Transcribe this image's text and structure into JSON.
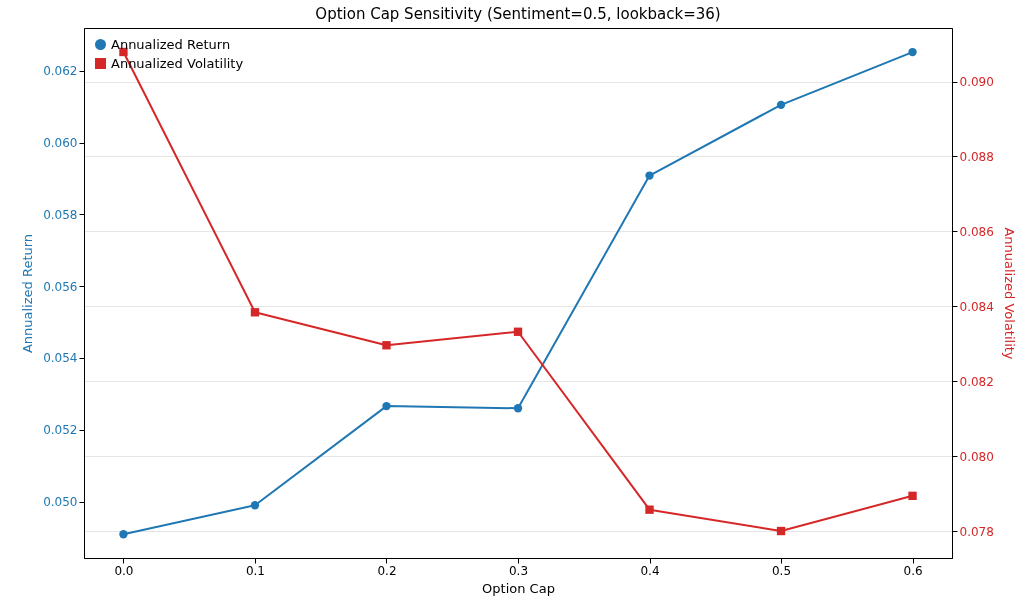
{
  "chart_data": {
    "type": "line",
    "title": "Option Cap Sensitivity (Sentiment=0.5, lookback=36)",
    "xlabel": "Option Cap",
    "ylabel": "Annualized Return",
    "y2label": "Annualized Volatility",
    "x": [
      0,
      0.1,
      0.2,
      0.3,
      0.4,
      0.5,
      0.6
    ],
    "series": [
      {
        "name": "Annualized Return",
        "color": "#1f77b4",
        "marker": "circle",
        "values": [
          0.04909,
          0.0499,
          0.05266,
          0.0526,
          0.05908,
          0.06105,
          0.06252
        ]
      },
      {
        "name": "Annualized Volatility",
        "color": "#d62728",
        "marker": "square",
        "axis": "y2",
        "values": [
          0.09079,
          0.08384,
          0.08296,
          0.08332,
          0.07857,
          0.078,
          0.07894
        ]
      }
    ],
    "xlim": [
      -0.03,
      0.63
    ],
    "xticks": [
      {
        "value": 0,
        "label": "0.0"
      },
      0.1,
      0.2,
      0.3,
      0.4,
      0.5,
      0.6
    ],
    "ylim": [
      0.04843,
      0.06319
    ],
    "yticks": [
      {
        "value": 0.05,
        "label": "0.050"
      },
      0.052,
      0.054,
      0.056,
      0.058,
      {
        "value": 0.06,
        "label": "0.060"
      },
      0.062
    ],
    "y2lim": [
      0.07728,
      0.09143
    ],
    "y2ticks": [
      0.078,
      {
        "value": 0.08,
        "label": "0.080"
      },
      0.082,
      0.084,
      0.086,
      0.088,
      {
        "value": 0.09,
        "label": "0.090"
      }
    ],
    "grid": "y2",
    "legend": "top left",
    "line_style": "solid"
  }
}
